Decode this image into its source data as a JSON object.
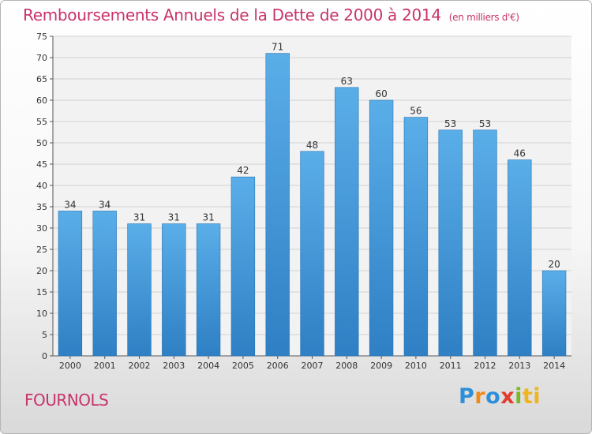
{
  "title": "Remboursements Annuels de la Dette de 2000 à 2014",
  "unit": "(en milliers d'€)",
  "commune": "FOURNOLS",
  "logo": {
    "p": "P",
    "r": "r",
    "o": "o",
    "x": "x",
    "i": "i",
    "t": "ti",
    "full": "Proxiti"
  },
  "colors": {
    "title": "#c8336b",
    "bar_top": "#5aaee8",
    "bar_bottom": "#2f7fc4"
  },
  "chart_data": {
    "type": "bar",
    "title": "Remboursements Annuels de la Dette de 2000 à 2014",
    "xlabel": "",
    "ylabel": "(en milliers d'€)",
    "categories": [
      "2000",
      "2001",
      "2002",
      "2003",
      "2004",
      "2005",
      "2006",
      "2007",
      "2008",
      "2009",
      "2010",
      "2011",
      "2012",
      "2013",
      "2014"
    ],
    "values": [
      34,
      34,
      31,
      31,
      31,
      42,
      71,
      48,
      63,
      60,
      56,
      53,
      53,
      46,
      20
    ],
    "ylim": [
      0,
      75
    ],
    "yticks": [
      0,
      5,
      10,
      15,
      20,
      25,
      30,
      35,
      40,
      45,
      50,
      55,
      60,
      65,
      70,
      75
    ],
    "grid": true
  }
}
